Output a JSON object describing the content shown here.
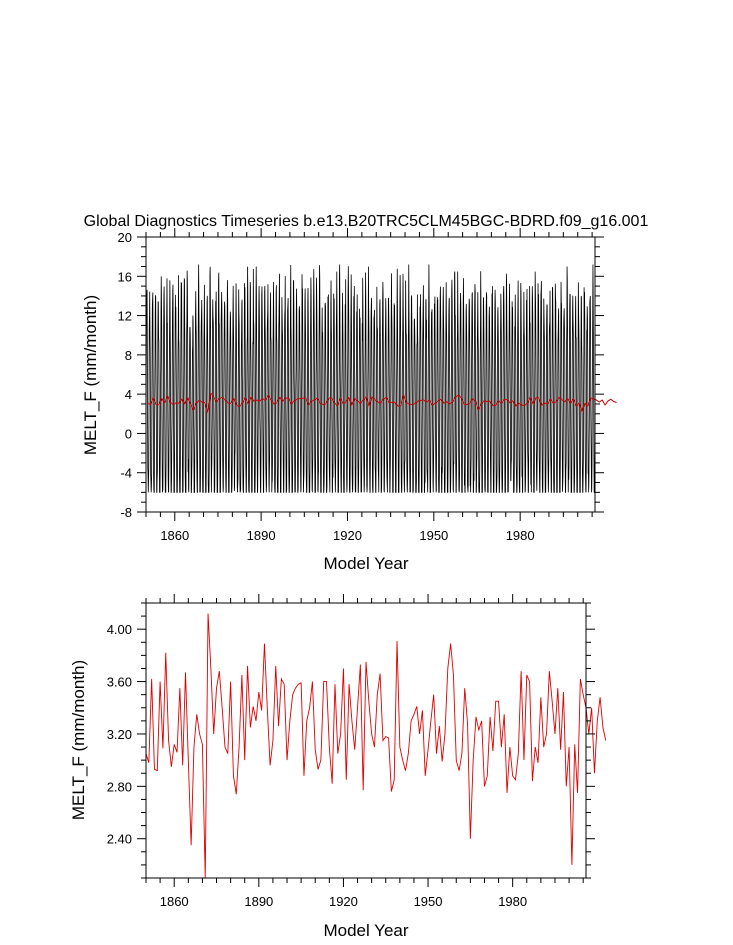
{
  "chart_data": [
    {
      "type": "line",
      "title": "Global Diagnostics Timeseries b.e13.B20TRC5CLM45BGC-BDRD.f09_g16.001",
      "xlabel": "Model Year",
      "ylabel": "MELT_F (mm/month)",
      "xlim": [
        1850,
        2006
      ],
      "ylim": [
        -8,
        20
      ],
      "x_ticks": [
        "1860",
        "1890",
        "1920",
        "1950",
        "1980"
      ],
      "y_ticks": [
        "-8",
        "-4",
        "0",
        "4",
        "8",
        "12",
        "16",
        "20"
      ],
      "series": [
        {
          "color": "#000000",
          "sampling": "monthly",
          "mean_approx": 3.2,
          "min_approx": -6,
          "max_approx": 17.2
        },
        {
          "color": "#cc0000",
          "sampling": "annual mean",
          "mean_approx": 3.2
        }
      ]
    },
    {
      "type": "line",
      "xlabel": "Model Year",
      "ylabel": "MELT_F (mm/month)",
      "xlim": [
        1850,
        2006
      ],
      "ylim": [
        2.1,
        4.2
      ],
      "x_ticks": [
        "1860",
        "1890",
        "1920",
        "1950",
        "1980"
      ],
      "y_ticks": [
        "2.40",
        "2.80",
        "3.20",
        "3.60",
        "4.00"
      ],
      "series": [
        {
          "color": "#e00000",
          "x_start": 1850,
          "values": [
            3.05,
            2.98,
            3.62,
            2.93,
            2.92,
            3.6,
            3.09,
            3.82,
            3.15,
            2.95,
            3.12,
            3.06,
            3.55,
            2.96,
            3.67,
            3.0,
            2.35,
            3.1,
            3.35,
            3.2,
            3.12,
            2.1,
            4.12,
            3.7,
            3.2,
            3.55,
            3.68,
            3.4,
            3.1,
            3.05,
            3.6,
            2.88,
            2.74,
            3.1,
            3.65,
            3.0,
            3.72,
            3.25,
            3.41,
            3.3,
            3.52,
            3.38,
            3.89,
            3.4,
            2.96,
            3.15,
            3.72,
            3.26,
            3.62,
            3.58,
            3.0,
            3.3,
            3.5,
            3.55,
            3.58,
            3.59,
            2.88,
            3.3,
            3.4,
            3.6,
            3.08,
            2.93,
            3.0,
            3.6,
            3.6,
            3.1,
            2.82,
            3.58,
            3.05,
            3.2,
            3.7,
            2.85,
            3.58,
            3.3,
            3.08,
            3.4,
            3.73,
            2.77,
            3.75,
            3.45,
            3.2,
            3.1,
            3.5,
            3.66,
            3.15,
            3.18,
            3.17,
            2.76,
            2.85,
            3.91,
            3.1,
            3.0,
            2.92,
            3.05,
            3.3,
            3.35,
            3.41,
            3.2,
            3.38,
            2.88,
            3.08,
            3.3,
            3.5,
            3.05,
            3.26,
            2.99,
            3.2,
            3.7,
            3.89,
            3.65,
            3.0,
            2.92,
            3.05,
            3.55,
            3.28,
            2.4,
            3.0,
            3.33,
            3.23,
            3.3,
            2.8,
            2.88,
            3.33,
            3.07,
            3.45,
            3.45,
            3.1,
            3.35,
            2.75,
            3.1,
            2.88,
            2.85,
            3.05,
            3.68,
            3.0,
            3.65,
            3.6,
            2.84,
            3.1,
            2.98,
            3.48,
            3.1,
            3.2,
            3.68,
            3.45,
            3.2,
            3.55,
            3.08,
            3.52,
            2.8,
            3.1,
            2.2,
            3.12,
            2.75,
            3.62,
            3.5,
            3.4,
            3.2,
            3.4,
            2.9,
            3.3,
            3.48,
            3.25,
            3.15
          ]
        }
      ]
    }
  ]
}
